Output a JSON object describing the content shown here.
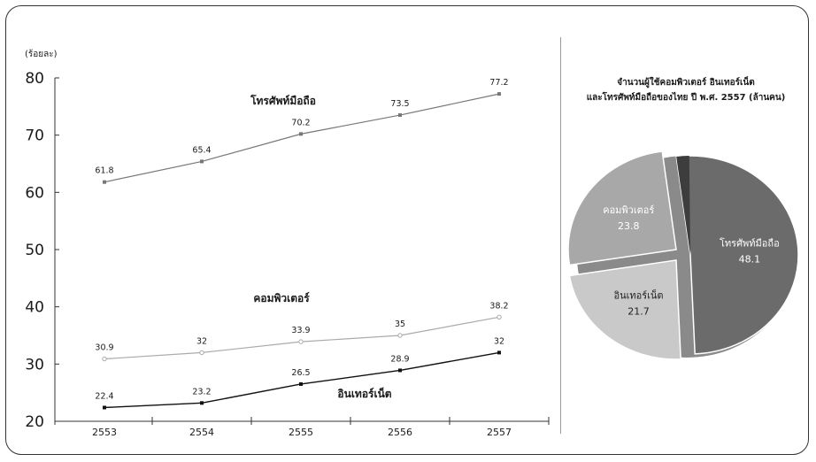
{
  "line_chart": {
    "unit": "(ร้อยละ)",
    "y_ticks": [
      20,
      30,
      40,
      50,
      60,
      70,
      80
    ],
    "chart_data": {
      "type": "line",
      "x": [
        "2553",
        "2554",
        "2555",
        "2556",
        "2557"
      ],
      "ylim": [
        20,
        80
      ],
      "ylabel": "(ร้อยละ)",
      "grid": false,
      "series": [
        {
          "name": "โทรศัพท์มือถือ",
          "values": [
            61.8,
            65.4,
            70.2,
            73.5,
            77.2
          ],
          "color": "#777777",
          "marker": "square",
          "value_labels": [
            "61.8",
            "65.4",
            "70.2",
            "73.5",
            "77.2"
          ]
        },
        {
          "name": "คอมพิวเตอร์",
          "values": [
            30.9,
            32,
            33.9,
            35,
            38.2
          ],
          "color": "#aaaaaa",
          "marker": "hollow-circle",
          "value_labels": [
            "30.9",
            "32",
            "33.9",
            "35",
            "38.2"
          ]
        },
        {
          "name": "อินเทอร์เน็ต",
          "values": [
            22.4,
            23.2,
            26.5,
            28.9,
            32
          ],
          "color": "#111111",
          "marker": "square",
          "value_labels": [
            "22.4",
            "23.2",
            "26.5",
            "28.9",
            "32"
          ]
        }
      ]
    }
  },
  "pie_chart": {
    "title_line1": "จำนวนผู้ใช้คอมพิวเตอร์ อินเทอร์เน็ต",
    "title_line2": "และโทรศัพท์มือถือของไทย ปี พ.ศ. 2557 (ล้านคน)",
    "chart_data": {
      "type": "pie",
      "slices": [
        {
          "name": "โทรศัพท์มือถือ",
          "value": 48.1,
          "value_label": "48.1",
          "color": "#6b6b6b"
        },
        {
          "name": "อินเทอร์เน็ต",
          "value": 21.7,
          "value_label": "21.7",
          "color": "#c9c9c9"
        },
        {
          "name": "คอมพิวเตอร์",
          "value": 23.8,
          "value_label": "23.8",
          "color": "#a8a8a8"
        }
      ]
    }
  }
}
